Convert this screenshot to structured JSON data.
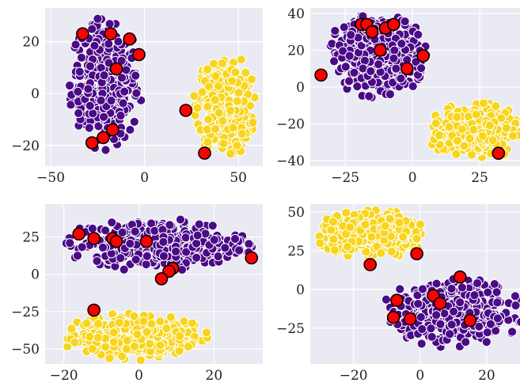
{
  "colors": {
    "background": "#eaeaf2",
    "grid": "#ffffff",
    "class_a": "#4b0a87",
    "class_b": "#f8d51c",
    "highlight": "#ff0000",
    "highlight_edge": "#000000",
    "point_edge": "#ffffff"
  },
  "chart_data": [
    {
      "type": "scatter",
      "title": "",
      "xlabel": "",
      "ylabel": "",
      "xlim": [
        -53,
        63
      ],
      "ylim": [
        -28,
        33
      ],
      "xticks": [
        -50,
        0,
        50
      ],
      "yticks": [
        -20,
        0,
        20
      ],
      "xtick_labels": [
        "−50",
        "0",
        "50"
      ],
      "ytick_labels": [
        "−20",
        "0",
        "20"
      ],
      "grid": true,
      "clusters": [
        {
          "color_key": "class_a",
          "center": [
            -21,
            4
          ],
          "rx": 20,
          "ry": 26,
          "count": 420,
          "point_size": 9
        },
        {
          "color_key": "class_b",
          "center": [
            43,
            -5
          ],
          "rx": 17,
          "ry": 21,
          "count": 360,
          "point_size": 9
        }
      ],
      "highlighted": [
        [
          -33,
          23
        ],
        [
          -18,
          23
        ],
        [
          -8,
          21
        ],
        [
          -3,
          15
        ],
        [
          -15,
          9.5
        ],
        [
          -17,
          -14
        ],
        [
          -22,
          -17
        ],
        [
          -28,
          -19
        ],
        [
          22,
          -6.5
        ],
        [
          32,
          -23
        ]
      ]
    },
    {
      "type": "scatter",
      "title": "",
      "xlabel": "",
      "ylabel": "",
      "xlim": [
        -38,
        40
      ],
      "ylim": [
        -43,
        43
      ],
      "xticks": [
        -25,
        0,
        25
      ],
      "yticks": [
        -40,
        -20,
        0,
        20,
        40
      ],
      "xtick_labels": [
        "−25",
        "0",
        "25"
      ],
      "ytick_labels": [
        "−40",
        "−20",
        "0",
        "20",
        "40"
      ],
      "grid": true,
      "clusters": [
        {
          "color_key": "class_a",
          "center": [
            -13,
            18
          ],
          "rx": 20,
          "ry": 24,
          "count": 420,
          "point_size": 9
        },
        {
          "color_key": "class_b",
          "center": [
            23,
            -24
          ],
          "rx": 18,
          "ry": 16,
          "count": 360,
          "point_size": 9
        }
      ],
      "highlighted": [
        [
          -19,
          34
        ],
        [
          -17,
          34
        ],
        [
          -15,
          30
        ],
        [
          -10,
          32
        ],
        [
          -7,
          34
        ],
        [
          -12,
          20
        ],
        [
          4,
          17
        ],
        [
          -2,
          10
        ],
        [
          -34,
          6.5
        ],
        [
          32,
          -36
        ]
      ]
    },
    {
      "type": "scatter",
      "title": "",
      "xlabel": "",
      "ylabel": "",
      "xlim": [
        -25,
        33
      ],
      "ylim": [
        -60,
        47
      ],
      "xticks": [
        -20,
        0,
        20
      ],
      "yticks": [
        -50,
        -25,
        0,
        25
      ],
      "xtick_labels": [
        "−20",
        "0",
        "20"
      ],
      "ytick_labels": [
        "−50",
        "−25",
        "0",
        "25"
      ],
      "grid": true,
      "clusters": [
        {
          "color_key": "class_a",
          "center": [
            5,
            20
          ],
          "rx": 26,
          "ry": 18,
          "count": 420,
          "point_size": 9
        },
        {
          "color_key": "class_b",
          "center": [
            -1,
            -42
          ],
          "rx": 20,
          "ry": 16,
          "count": 360,
          "point_size": 9
        }
      ],
      "highlighted": [
        [
          -16,
          27
        ],
        [
          -12,
          24
        ],
        [
          -7,
          24
        ],
        [
          -6,
          22
        ],
        [
          2,
          22
        ],
        [
          9,
          4
        ],
        [
          8,
          2
        ],
        [
          6,
          -3
        ],
        [
          30,
          11
        ],
        [
          -12,
          -24
        ]
      ]
    },
    {
      "type": "scatter",
      "title": "",
      "xlabel": "",
      "ylabel": "",
      "xlim": [
        -33,
        30
      ],
      "ylim": [
        -48,
        55
      ],
      "xticks": [
        -20,
        0,
        20
      ],
      "yticks": [
        -25,
        0,
        25,
        50
      ],
      "xtick_labels": [
        "−20",
        "0",
        "20"
      ],
      "ytick_labels": [
        "−25",
        "0",
        "25",
        "50"
      ],
      "grid": true,
      "clusters": [
        {
          "color_key": "class_b",
          "center": [
            -14,
            36
          ],
          "rx": 18,
          "ry": 16,
          "count": 360,
          "point_size": 9
        },
        {
          "color_key": "class_a",
          "center": [
            10,
            -15
          ],
          "rx": 22,
          "ry": 23,
          "count": 420,
          "point_size": 9
        }
      ],
      "highlighted": [
        [
          -15,
          16
        ],
        [
          -1,
          23
        ],
        [
          12,
          8
        ],
        [
          -7,
          -7
        ],
        [
          4,
          -4
        ],
        [
          6,
          -9
        ],
        [
          -8,
          -18
        ],
        [
          -3,
          -19
        ],
        [
          15,
          -20
        ]
      ]
    }
  ]
}
